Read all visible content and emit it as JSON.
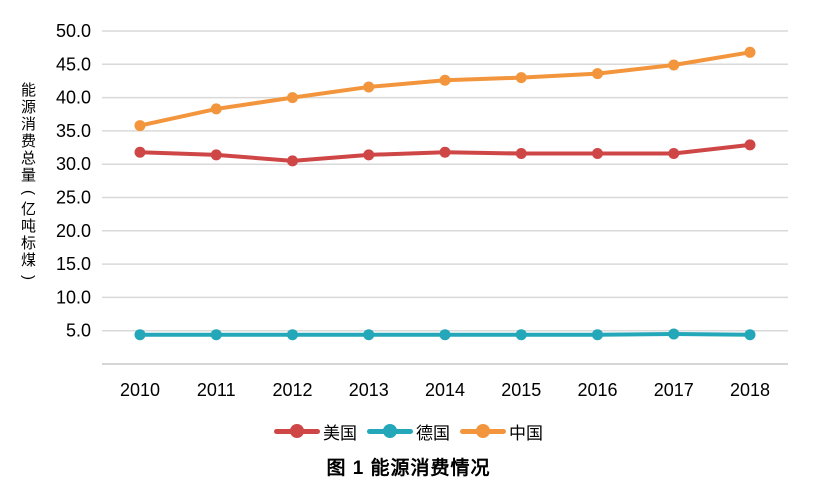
{
  "figure": {
    "caption": "图 1  能源消费情况"
  },
  "chart_data": {
    "type": "line",
    "title": "图 1  能源消费情况",
    "xlabel": "",
    "ylabel": "能源消费总量(亿吨标煤)",
    "categories": [
      "2010",
      "2011",
      "2012",
      "2013",
      "2014",
      "2015",
      "2016",
      "2017",
      "2018"
    ],
    "series": [
      {
        "name": "美国",
        "color": "#CF4647",
        "values": [
          31.8,
          31.4,
          30.5,
          31.4,
          31.8,
          31.6,
          31.6,
          31.6,
          32.9
        ]
      },
      {
        "name": "德国",
        "color": "#23A7B9",
        "values": [
          4.4,
          4.4,
          4.4,
          4.4,
          4.4,
          4.4,
          4.4,
          4.5,
          4.4
        ]
      },
      {
        "name": "中国",
        "color": "#F2953C",
        "values": [
          35.8,
          38.3,
          40.0,
          41.6,
          42.6,
          43.0,
          43.6,
          44.9,
          46.8
        ]
      }
    ],
    "ylim": [
      0,
      50
    ],
    "yticks": [
      5,
      10,
      15,
      20,
      25,
      30,
      35,
      40,
      45,
      50
    ],
    "ytick_format": "one-decimal",
    "grid": "horizontal",
    "legend_position": "bottom",
    "colors": {
      "grid": "#D9D9D9",
      "axis": "#C9C9C9",
      "text": "#000000"
    }
  }
}
